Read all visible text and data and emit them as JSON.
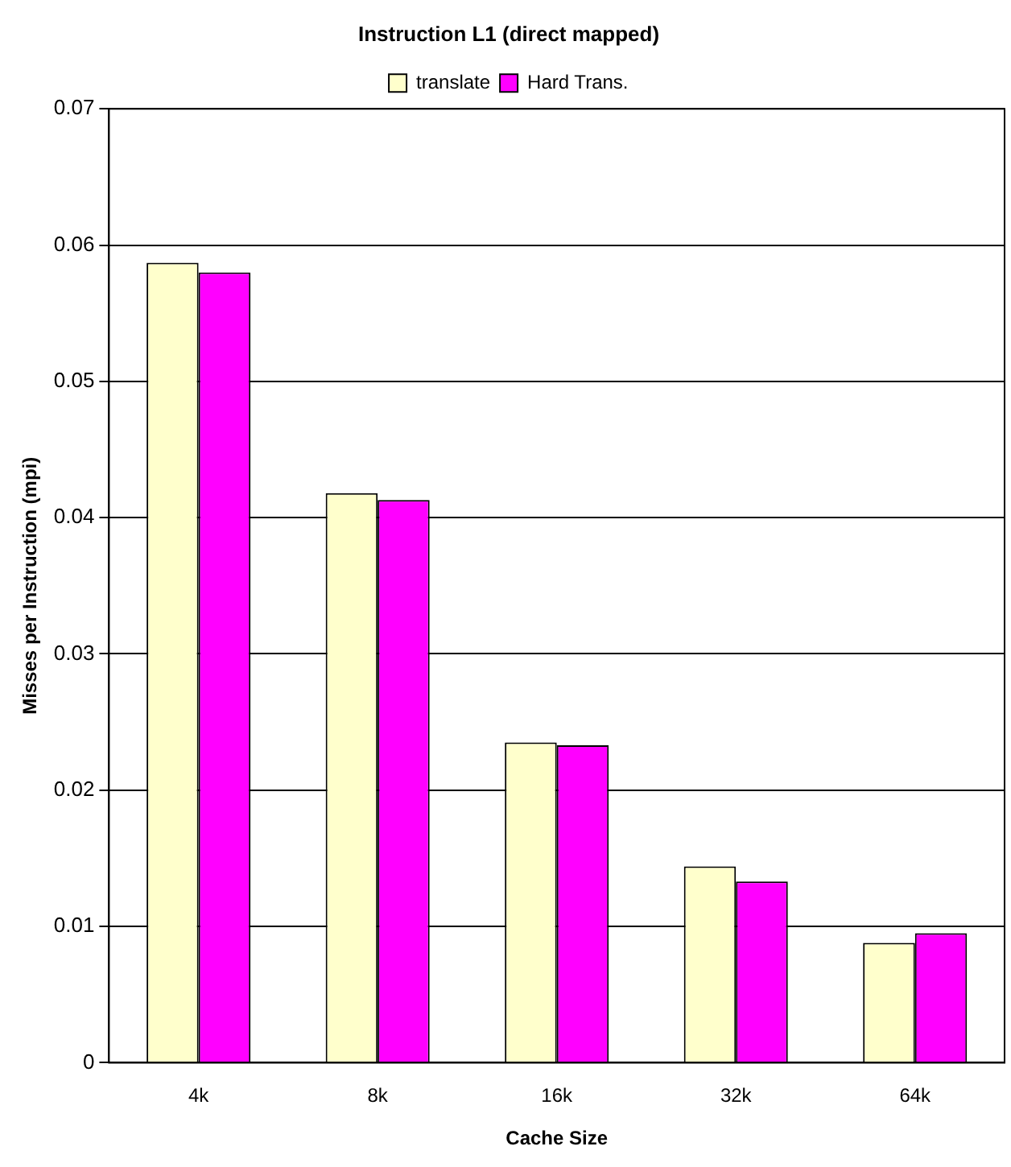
{
  "chart_data": {
    "type": "bar",
    "title": "Instruction L1 (direct mapped)",
    "xlabel": "Cache Size",
    "ylabel": "Misses per Instruction (mpi)",
    "categories": [
      "4k",
      "8k",
      "16k",
      "32k",
      "64k"
    ],
    "series": [
      {
        "name": "translate",
        "color": "#ffffcc",
        "values": [
          0.0587,
          0.0418,
          0.0235,
          0.0144,
          0.0088
        ]
      },
      {
        "name": "Hard Trans.",
        "color": "#ff00ff",
        "values": [
          0.058,
          0.0413,
          0.0233,
          0.0133,
          0.0095
        ]
      }
    ],
    "ylim": [
      0,
      0.07
    ],
    "yticks": [
      0,
      0.01,
      0.02,
      0.03,
      0.04,
      0.05,
      0.06,
      0.07
    ],
    "grid": "y",
    "legend": "top"
  }
}
